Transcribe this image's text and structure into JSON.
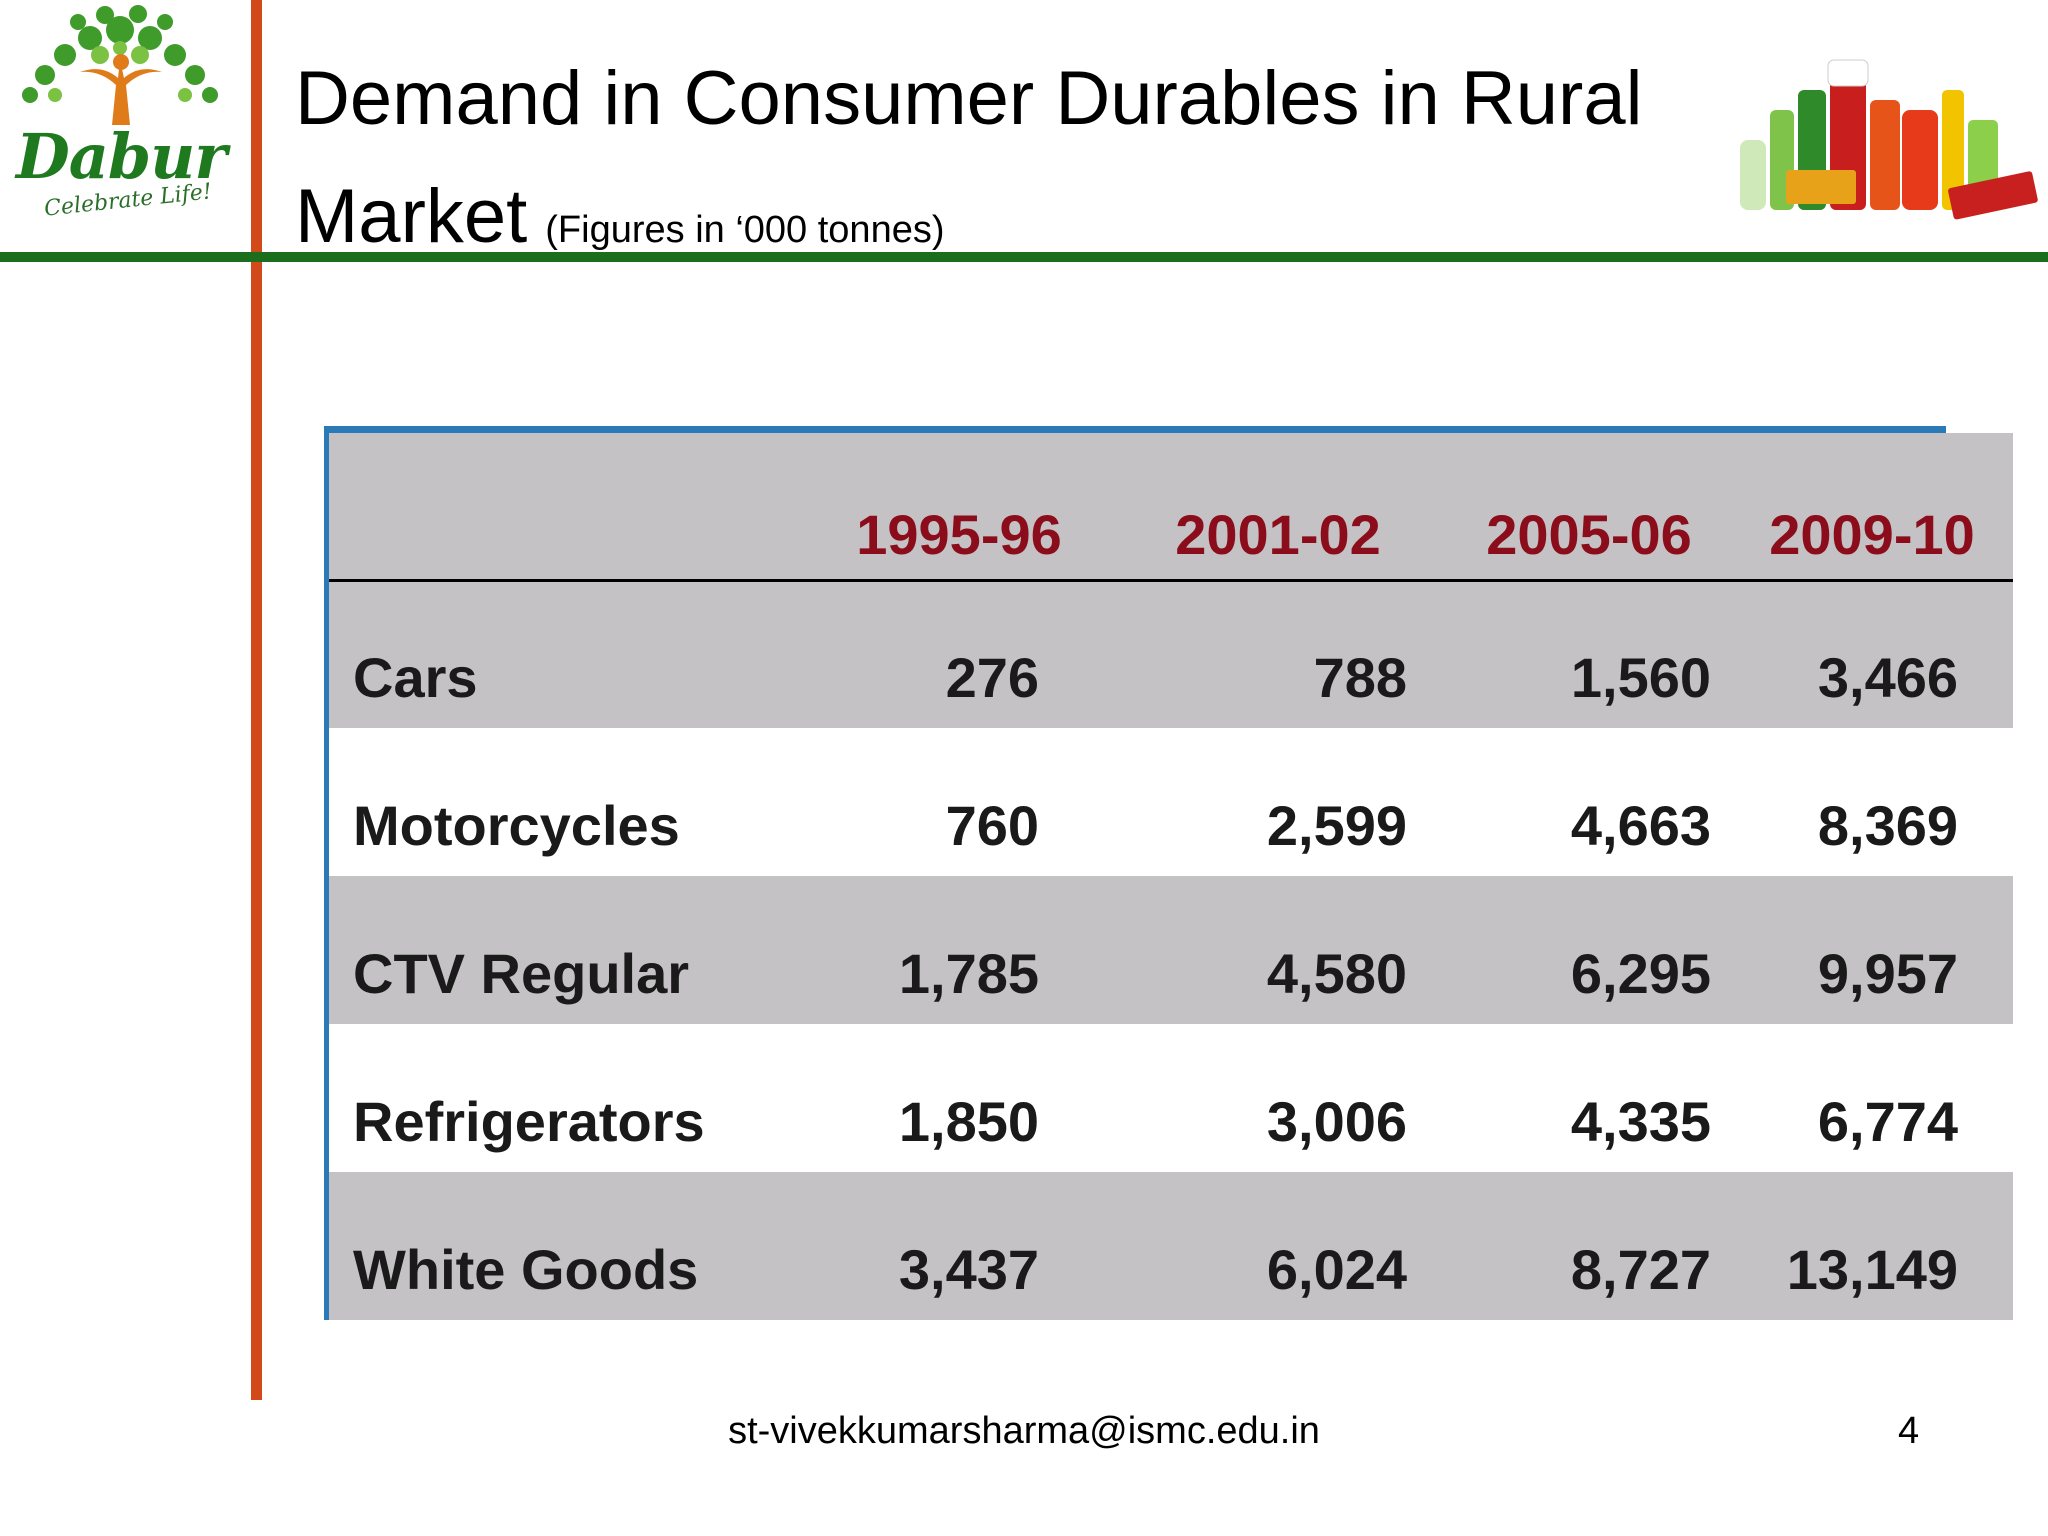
{
  "header": {
    "title": "Demand in Consumer Durables in Rural Market",
    "subtitle": "(Figures in ‘000 tonnes)"
  },
  "logo": {
    "brand": "Dabur",
    "tagline": "Celebrate Life!",
    "icon": "tree-logo-icon",
    "colors": {
      "green": "#1f7a1f",
      "orange": "#e07b1a"
    }
  },
  "products_image": {
    "icon": "product-bottles-icon"
  },
  "colors": {
    "orange_bar": "#d24a1a",
    "green_bar": "#1b6e1b",
    "header_text": "#8b0c1a",
    "row_gray": "#c4c2c4",
    "table_border": "#2a7ab8"
  },
  "table": {
    "columns": [
      "",
      "1995-96",
      "2001-02",
      "2005-06",
      "2009-10"
    ],
    "rows": [
      {
        "label": "Cars",
        "values": [
          "276",
          "788",
          "1,560",
          "3,466"
        ]
      },
      {
        "label": "Motorcycles",
        "values": [
          "760",
          "2,599",
          "4,663",
          "8,369"
        ]
      },
      {
        "label": "CTV Regular",
        "values": [
          "1,785",
          "4,580",
          "6,295",
          "9,957"
        ]
      },
      {
        "label": "Refrigerators",
        "values": [
          "1,850",
          "3,006",
          "4,335",
          "6,774"
        ]
      },
      {
        "label": "White Goods",
        "values": [
          "3,437",
          "6,024",
          "8,727",
          "13,149"
        ]
      }
    ]
  },
  "footer": {
    "email": "st-vivekkumarsharma@ismc.edu.in",
    "page_number": "4"
  }
}
